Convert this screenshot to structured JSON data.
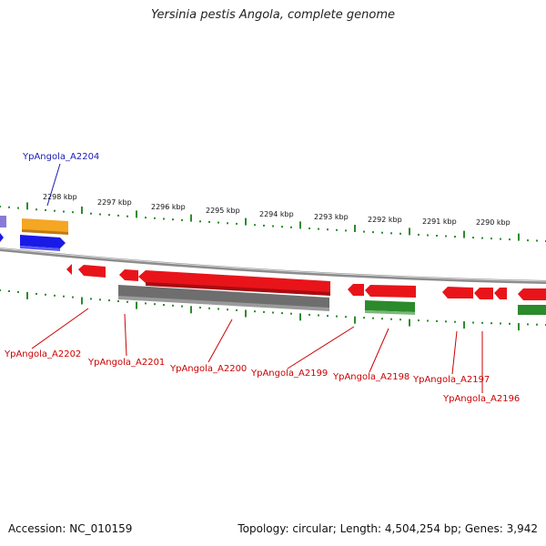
{
  "title": "Yersinia pestis Angola, complete genome",
  "footer": {
    "accession": "Accession: NC_010159",
    "topology": "Topology: circular; Length: 4,504,254 bp; Genes: 3,942"
  },
  "colors": {
    "backbone": "#8c8c8c",
    "ticks": "#2e8b2e",
    "feature_red": "#e8141a",
    "feature_grey": "#6e6e6e",
    "feature_green": "#2b8a2b",
    "feature_blue": "#1a1ae6",
    "feature_orange": "#f5a623",
    "feature_purple": "#8a7ad6",
    "label_blue": "#1a1ab4",
    "label_red": "#cc0000"
  },
  "scale_labels": [
    "2298 kbp",
    "2297 kbp",
    "2296 kbp",
    "2295 kbp",
    "2294 kbp",
    "2293 kbp",
    "2292 kbp",
    "2291 kbp",
    "2290 kbp"
  ],
  "gene_labels": [
    {
      "name": "label-ypangola-a2204",
      "text": "YpAngola_A2204",
      "color": "blue"
    },
    {
      "name": "label-ypangola-a2202",
      "text": "YpAngola_A2202",
      "color": "red"
    },
    {
      "name": "label-ypangola-a2201",
      "text": "YpAngola_A2201",
      "color": "red"
    },
    {
      "name": "label-ypangola-a2200",
      "text": "YpAngola_A2200",
      "color": "red"
    },
    {
      "name": "label-ypangola-a2199",
      "text": "YpAngola_A2199",
      "color": "red"
    },
    {
      "name": "label-ypangola-a2198",
      "text": "YpAngola_A2198",
      "color": "red"
    },
    {
      "name": "label-ypangola-a2197",
      "text": "YpAngola_A2197",
      "color": "red"
    },
    {
      "name": "label-ypangola-a2196",
      "text": "YpAngola_A2196",
      "color": "red"
    }
  ]
}
